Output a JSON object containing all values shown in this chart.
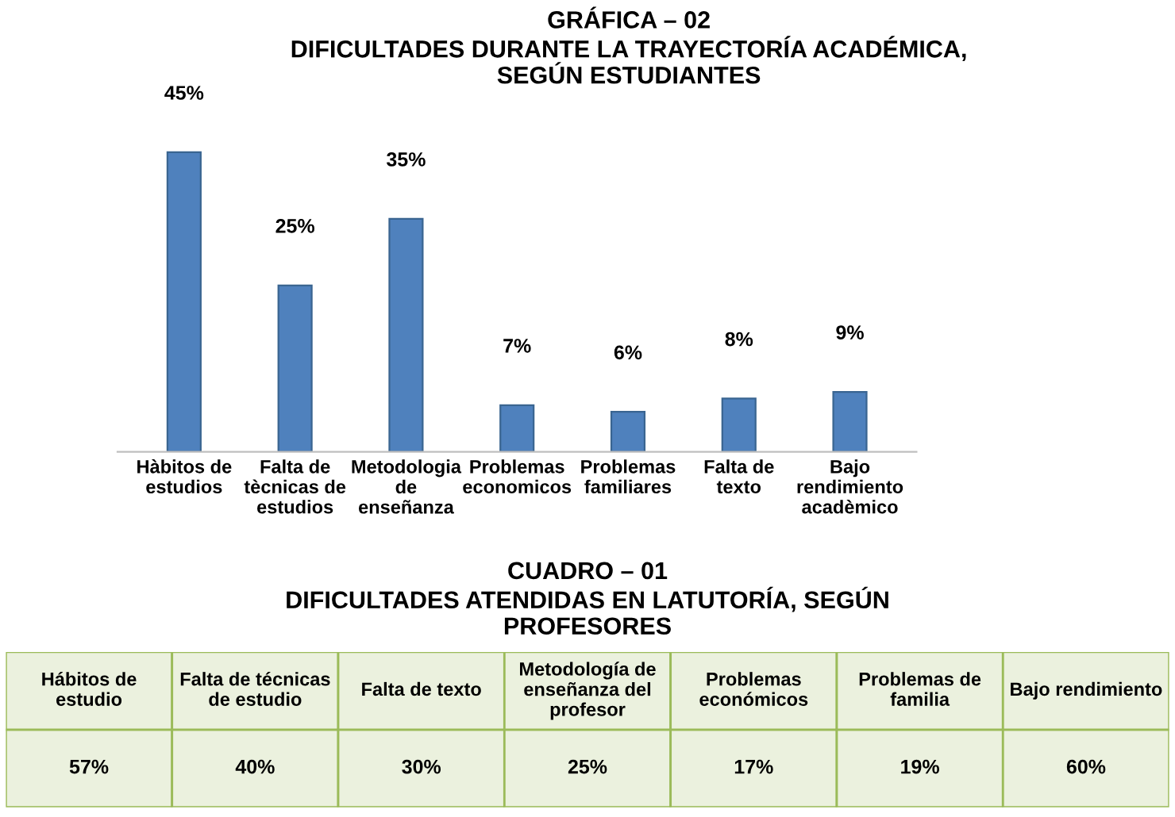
{
  "chart_data": [
    {
      "type": "bar",
      "title": "GRÁFICA – 02\nDIFICULTADES DURANTE LA TRAYECTORÍA ACADÉMICA,\nSEGÚN ESTUDIANTES",
      "categories": [
        "Hàbitos de\nestudios",
        "Falta de\ntècnicas de\nestudios",
        "Metodologia\nde\nenseñanza",
        "Problemas\neconomicos",
        "Problemas\nfamiliares",
        "Falta de\ntexto",
        "Bajo\nrendimiento\nacadèmico"
      ],
      "values": [
        45,
        25,
        35,
        7,
        6,
        8,
        9
      ],
      "value_labels": [
        "45%",
        "25%",
        "35%",
        "7%",
        "6%",
        "8%",
        "9%"
      ],
      "color": "#4f81bd"
    },
    {
      "type": "other",
      "title": "CUADRO – 01\nDIFICULTADES ATENDIDAS EN LATUTORÍA, SEGÚN\nPROFESORES",
      "categories": [
        "Hábitos de\nestudio",
        "Falta de técnicas\nde estudio",
        "Falta de texto",
        "Metodología de\nenseñanza del\nprofesor",
        "Problemas\neconómicos",
        "Problemas de\nfamilia",
        "Bajo rendimiento"
      ],
      "value_labels": [
        "57%",
        "40%",
        "30%",
        "25%",
        "17%",
        "19%",
        "60%"
      ],
      "color": "#ebf1de"
    }
  ]
}
